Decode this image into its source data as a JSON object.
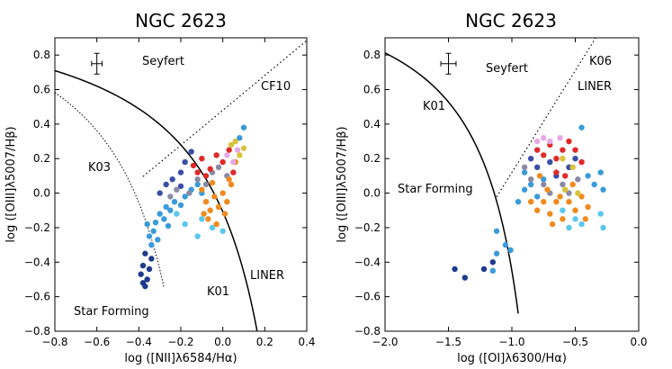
{
  "chart_data": [
    {
      "type": "scatter",
      "title": "NGC 2623",
      "xlabel": "log ([NII]λ6584/Hα)",
      "ylabel": "log ([OIII]λ5007/Hβ)",
      "xlim": [
        -0.8,
        0.4
      ],
      "ylim": [
        -0.8,
        0.9
      ],
      "xticks": [
        "−0.8",
        "−0.6",
        "−0.4",
        "−0.2",
        "0.0",
        "0.2",
        "0.4"
      ],
      "yticks": [
        "−0.8",
        "−0.6",
        "−0.4",
        "−0.2",
        "0.0",
        "0.2",
        "0.4",
        "0.6",
        "0.8"
      ],
      "annotations": [
        "Seyfert",
        "CF10",
        "K03",
        "LINER",
        "K01",
        "Star Forming"
      ],
      "curves": [
        {
          "name": "K01",
          "style": "solid"
        },
        {
          "name": "K03",
          "style": "dotted"
        },
        {
          "name": "CF10",
          "style": "dotted"
        }
      ],
      "error_bar": {
        "x": -0.6,
        "y": 0.75,
        "dx": 0.025,
        "dy": 0.06
      },
      "points": [
        [
          -0.38,
          -0.42,
          "#1e3a8c"
        ],
        [
          -0.39,
          -0.47,
          "#1e3a8c"
        ],
        [
          -0.38,
          -0.52,
          "#1e3a8c"
        ],
        [
          -0.37,
          -0.54,
          "#1e3a8c"
        ],
        [
          -0.36,
          -0.5,
          "#1e3a8c"
        ],
        [
          -0.35,
          -0.44,
          "#1e3a8c"
        ],
        [
          -0.37,
          -0.35,
          "#1e3a8c"
        ],
        [
          -0.34,
          -0.38,
          "#1e3a8c"
        ],
        [
          -0.35,
          -0.25,
          "#3a9bd8"
        ],
        [
          -0.33,
          -0.22,
          "#3a9bd8"
        ],
        [
          -0.36,
          -0.18,
          "#3a9bd8"
        ],
        [
          -0.32,
          -0.17,
          "#3a9bd8"
        ],
        [
          -0.3,
          -0.12,
          "#3a9bd8"
        ],
        [
          -0.28,
          -0.15,
          "#3a9bd8"
        ],
        [
          -0.27,
          -0.08,
          "#3a9bd8"
        ],
        [
          -0.25,
          -0.1,
          "#3a9bd8"
        ],
        [
          -0.23,
          -0.05,
          "#3a9bd8"
        ],
        [
          -0.2,
          -0.07,
          "#3a9bd8"
        ],
        [
          -0.18,
          -0.02,
          "#3a9bd8"
        ],
        [
          -0.15,
          0.02,
          "#3a9bd8"
        ],
        [
          -0.12,
          0.05,
          "#3a9bd8"
        ],
        [
          -0.1,
          0.0,
          "#3a9bd8"
        ],
        [
          -0.34,
          -0.3,
          "#3a9bd8"
        ],
        [
          -0.31,
          -0.27,
          "#3a9bd8"
        ],
        [
          -0.26,
          -0.19,
          "#3a9bd8"
        ],
        [
          -0.22,
          -0.12,
          "#5ac8ee"
        ],
        [
          -0.18,
          -0.18,
          "#5ac8ee"
        ],
        [
          -0.1,
          -0.15,
          "#5ac8ee"
        ],
        [
          -0.05,
          -0.2,
          "#5ac8ee"
        ],
        [
          0.0,
          -0.22,
          "#5ac8ee"
        ],
        [
          -0.12,
          -0.25,
          "#5ac8ee"
        ],
        [
          -0.3,
          0.0,
          "#3a4ea8"
        ],
        [
          -0.27,
          0.05,
          "#3a4ea8"
        ],
        [
          -0.24,
          0.08,
          "#3a4ea8"
        ],
        [
          -0.2,
          0.12,
          "#3a4ea8"
        ],
        [
          -0.18,
          0.18,
          "#3a4ea8"
        ],
        [
          -0.15,
          0.24,
          "#3a4ea8"
        ],
        [
          -0.2,
          0.04,
          "#3a4ea8"
        ],
        [
          -0.25,
          -0.02,
          "#8a8aa6"
        ],
        [
          -0.22,
          0.02,
          "#8a8aa6"
        ],
        [
          -0.16,
          0.0,
          "#8a8aa6"
        ],
        [
          -0.12,
          0.08,
          "#8a8aa6"
        ],
        [
          -0.08,
          0.05,
          "#8a8aa6"
        ],
        [
          -0.05,
          0.12,
          "#8a8aa6"
        ],
        [
          -0.02,
          0.15,
          "#8a8aa6"
        ],
        [
          0.02,
          0.1,
          "#8a8aa6"
        ],
        [
          -0.14,
          0.16,
          "#e02a2a"
        ],
        [
          -0.1,
          0.2,
          "#e02a2a"
        ],
        [
          -0.06,
          0.14,
          "#e02a2a"
        ],
        [
          -0.03,
          0.22,
          "#e02a2a"
        ],
        [
          0.0,
          0.18,
          "#e02a2a"
        ],
        [
          0.03,
          0.25,
          "#e02a2a"
        ],
        [
          -0.08,
          0.1,
          "#e02a2a"
        ],
        [
          0.05,
          0.12,
          "#e02a2a"
        ],
        [
          -0.12,
          0.12,
          "#e02a2a"
        ],
        [
          -0.1,
          0.02,
          "#f08a1e"
        ],
        [
          -0.08,
          -0.05,
          "#f08a1e"
        ],
        [
          -0.06,
          -0.1,
          "#f08a1e"
        ],
        [
          -0.04,
          -0.02,
          "#f08a1e"
        ],
        [
          -0.02,
          -0.08,
          "#f08a1e"
        ],
        [
          0.0,
          0.0,
          "#f08a1e"
        ],
        [
          0.02,
          -0.05,
          "#f08a1e"
        ],
        [
          0.04,
          0.05,
          "#f08a1e"
        ],
        [
          0.06,
          0.18,
          "#f08a1e"
        ],
        [
          -0.07,
          -0.15,
          "#f08a1e"
        ],
        [
          -0.03,
          -0.18,
          "#f08a1e"
        ],
        [
          0.01,
          -0.12,
          "#f08a1e"
        ],
        [
          -0.09,
          -0.12,
          "#f08a1e"
        ],
        [
          0.03,
          0.08,
          "#f08a1e"
        ],
        [
          -0.05,
          0.06,
          "#f08a1e"
        ],
        [
          0.02,
          0.22,
          "#e6a8e6"
        ],
        [
          0.05,
          0.18,
          "#e6a8e6"
        ],
        [
          0.07,
          0.25,
          "#e6a8e6"
        ],
        [
          0.04,
          0.28,
          "#d8c23a"
        ],
        [
          0.06,
          0.3,
          "#d8c23a"
        ],
        [
          0.08,
          0.22,
          "#d8c23a"
        ],
        [
          0.1,
          0.26,
          "#d8c23a"
        ],
        [
          0.08,
          0.32,
          "#3a9bd8"
        ],
        [
          0.1,
          0.38,
          "#3a9bd8"
        ]
      ]
    },
    {
      "type": "scatter",
      "title": "NGC 2623",
      "xlabel": "log ([OI]λ6300/Hα)",
      "ylabel": "log ([OIII]λ5007/Hβ)",
      "xlim": [
        -2.0,
        0.0
      ],
      "ylim": [
        -0.8,
        0.9
      ],
      "xticks": [
        "−2.0",
        "−1.5",
        "−1.0",
        "−0.5",
        "0.0"
      ],
      "yticks": [
        "−0.8",
        "−0.6",
        "−0.4",
        "−0.2",
        "0.0",
        "0.2",
        "0.4",
        "0.6",
        "0.8"
      ],
      "annotations": [
        "Seyfert",
        "K06",
        "LINER",
        "K01",
        "Star Forming"
      ],
      "curves": [
        {
          "name": "K01",
          "style": "solid"
        },
        {
          "name": "K06",
          "style": "dotted"
        }
      ],
      "error_bar": {
        "x": -1.5,
        "y": 0.75,
        "dx": 0.06,
        "dy": 0.06
      },
      "points": [
        [
          -1.45,
          -0.44,
          "#1e3a8c"
        ],
        [
          -1.37,
          -0.49,
          "#1e3a8c"
        ],
        [
          -1.22,
          -0.44,
          "#1e3a8c"
        ],
        [
          -1.15,
          -0.4,
          "#1e3a8c"
        ],
        [
          -1.12,
          -0.22,
          "#3a9bd8"
        ],
        [
          -1.05,
          -0.3,
          "#3a9bd8"
        ],
        [
          -1.01,
          -0.33,
          "#3a9bd8"
        ],
        [
          -1.12,
          -0.35,
          "#3a9bd8"
        ],
        [
          -1.15,
          -0.45,
          "#3a9bd8"
        ],
        [
          -0.95,
          -0.05,
          "#3a9bd8"
        ],
        [
          -0.9,
          0.02,
          "#3a9bd8"
        ],
        [
          -0.85,
          0.05,
          "#3a9bd8"
        ],
        [
          -0.8,
          -0.02,
          "#3a9bd8"
        ],
        [
          -0.75,
          0.08,
          "#3a9bd8"
        ],
        [
          -0.9,
          0.12,
          "#3a9bd8"
        ],
        [
          -0.4,
          0.1,
          "#3a9bd8"
        ],
        [
          -0.35,
          0.05,
          "#3a9bd8"
        ],
        [
          -0.3,
          0.12,
          "#3a9bd8"
        ],
        [
          -0.45,
          0.38,
          "#3a9bd8"
        ],
        [
          -0.28,
          0.02,
          "#3a9bd8"
        ],
        [
          -0.5,
          -0.15,
          "#5ac8ee"
        ],
        [
          -0.45,
          -0.18,
          "#5ac8ee"
        ],
        [
          -0.3,
          -0.12,
          "#5ac8ee"
        ],
        [
          -0.28,
          -0.2,
          "#5ac8ee"
        ],
        [
          -0.6,
          -0.1,
          "#5ac8ee"
        ],
        [
          -0.55,
          -0.2,
          "#5ac8ee"
        ],
        [
          -0.85,
          0.2,
          "#3a4ea8"
        ],
        [
          -0.8,
          0.15,
          "#3a4ea8"
        ],
        [
          -0.7,
          0.18,
          "#3a4ea8"
        ],
        [
          -0.65,
          0.1,
          "#3a4ea8"
        ],
        [
          -0.55,
          0.15,
          "#3a4ea8"
        ],
        [
          -0.5,
          0.2,
          "#3a4ea8"
        ],
        [
          -0.9,
          0.15,
          "#8a8aa6"
        ],
        [
          -0.85,
          0.08,
          "#8a8aa6"
        ],
        [
          -0.75,
          0.05,
          "#8a8aa6"
        ],
        [
          -0.7,
          0.0,
          "#8a8aa6"
        ],
        [
          -0.6,
          0.05,
          "#8a8aa6"
        ],
        [
          -0.55,
          0.0,
          "#8a8aa6"
        ],
        [
          -0.48,
          0.08,
          "#8a8aa6"
        ],
        [
          -0.8,
          0.25,
          "#e02a2a"
        ],
        [
          -0.75,
          0.22,
          "#e02a2a"
        ],
        [
          -0.7,
          0.28,
          "#e02a2a"
        ],
        [
          -0.65,
          0.2,
          "#e02a2a"
        ],
        [
          -0.6,
          0.25,
          "#e02a2a"
        ],
        [
          -0.55,
          0.3,
          "#e02a2a"
        ],
        [
          -0.5,
          0.25,
          "#e02a2a"
        ],
        [
          -0.45,
          0.18,
          "#e02a2a"
        ],
        [
          -0.65,
          0.12,
          "#e02a2a"
        ],
        [
          -0.58,
          0.1,
          "#e02a2a"
        ],
        [
          -0.85,
          -0.05,
          "#f08a1e"
        ],
        [
          -0.8,
          -0.1,
          "#f08a1e"
        ],
        [
          -0.75,
          -0.05,
          "#f08a1e"
        ],
        [
          -0.7,
          -0.12,
          "#f08a1e"
        ],
        [
          -0.65,
          -0.05,
          "#f08a1e"
        ],
        [
          -0.6,
          -0.15,
          "#f08a1e"
        ],
        [
          -0.55,
          -0.05,
          "#f08a1e"
        ],
        [
          -0.5,
          -0.1,
          "#f08a1e"
        ],
        [
          -0.45,
          -0.02,
          "#f08a1e"
        ],
        [
          -0.4,
          -0.08,
          "#f08a1e"
        ],
        [
          -0.72,
          0.02,
          "#f08a1e"
        ],
        [
          -0.62,
          -0.02,
          "#f08a1e"
        ],
        [
          -0.52,
          0.05,
          "#f08a1e"
        ],
        [
          -0.42,
          -0.15,
          "#f08a1e"
        ],
        [
          -0.68,
          -0.18,
          "#f08a1e"
        ],
        [
          -0.78,
          0.1,
          "#f08a1e"
        ],
        [
          -0.8,
          0.3,
          "#e6a8e6"
        ],
        [
          -0.75,
          0.32,
          "#e6a8e6"
        ],
        [
          -0.7,
          0.3,
          "#e6a8e6"
        ],
        [
          -0.62,
          0.32,
          "#e6a8e6"
        ],
        [
          -0.6,
          0.2,
          "#d8c23a"
        ],
        [
          -0.52,
          0.15,
          "#d8c23a"
        ],
        [
          -0.58,
          0.02,
          "#d8c23a"
        ],
        [
          -0.48,
          0.0,
          "#d8c23a"
        ]
      ]
    }
  ]
}
